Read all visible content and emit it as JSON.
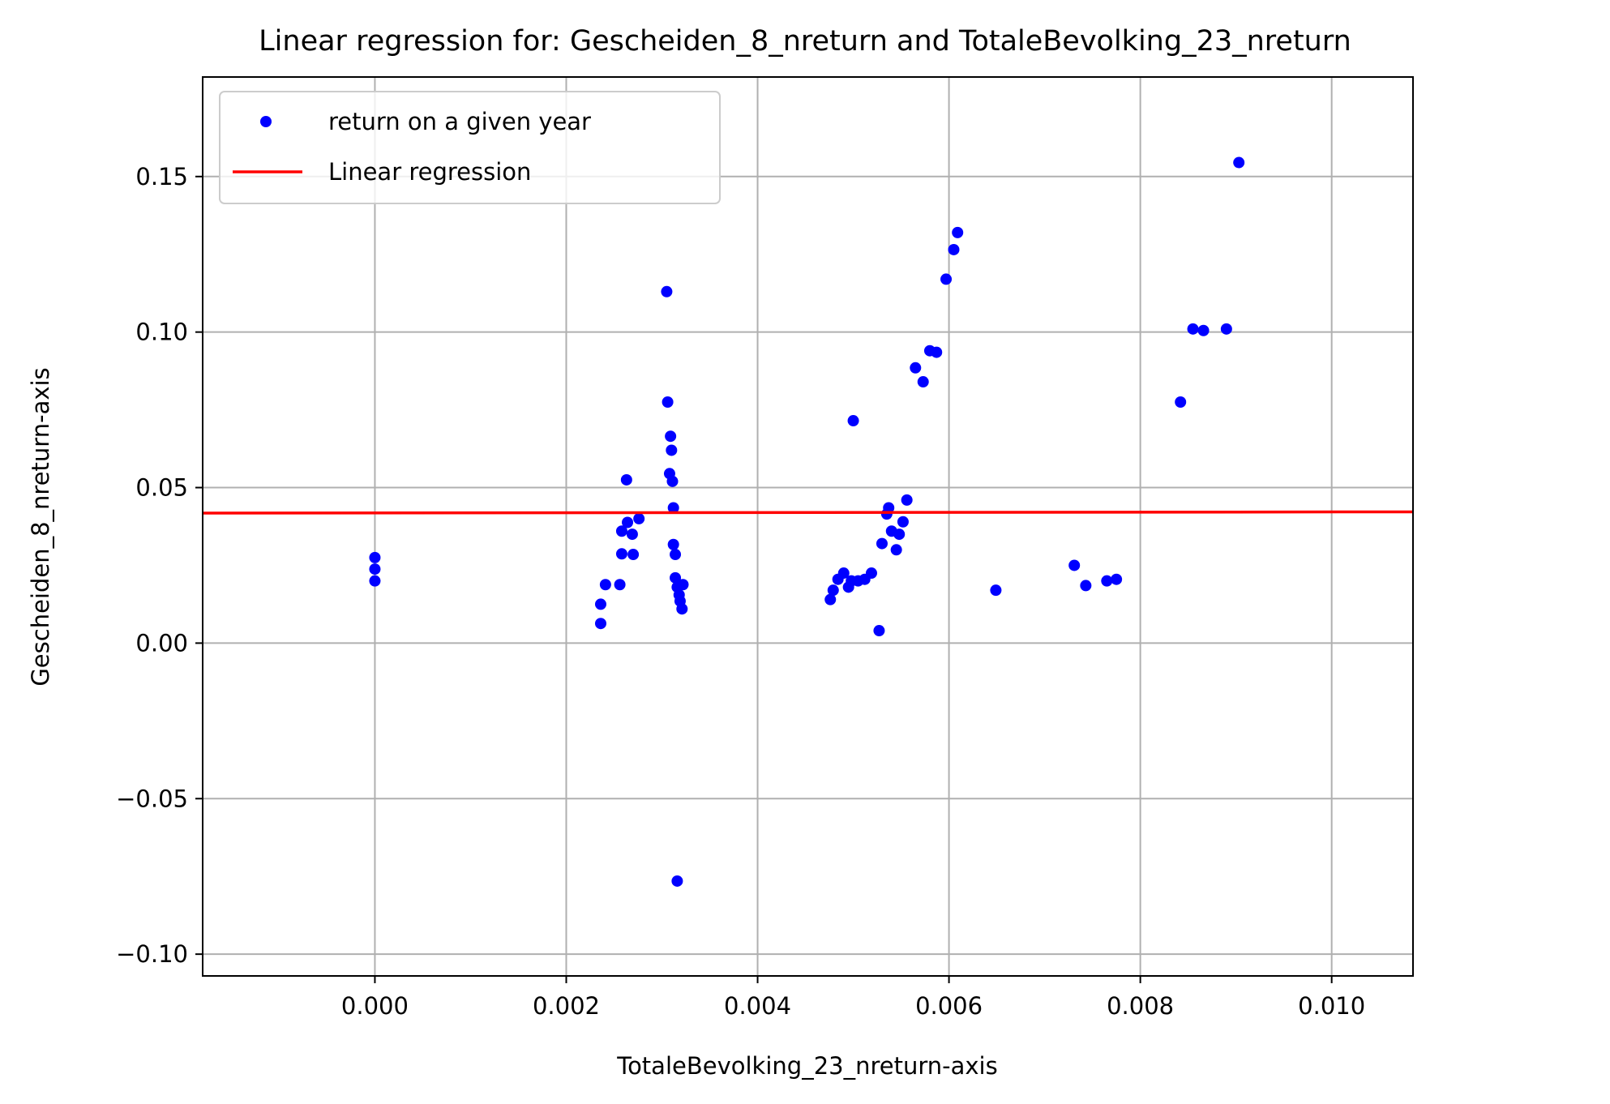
{
  "chart_data": {
    "type": "scatter",
    "title": "Linear regression for: Gescheiden_8_nreturn and TotaleBevolking_23_nreturn",
    "xlabel": "TotaleBevolking_23_nreturn-axis",
    "ylabel": "Gescheiden_8_nreturn-axis",
    "xlim": [
      -0.0018,
      0.01085
    ],
    "ylim": [
      -0.107,
      0.182
    ],
    "grid": true,
    "legend_position": "top-left",
    "x_ticks": [
      0.0,
      0.002,
      0.004,
      0.006,
      0.008,
      0.01
    ],
    "x_tick_labels": [
      "0.000",
      "0.002",
      "0.004",
      "0.006",
      "0.008",
      "0.010"
    ],
    "y_ticks": [
      -0.1,
      -0.05,
      0.0,
      0.05,
      0.1,
      0.15
    ],
    "y_tick_labels": [
      "−0.10",
      "−0.05",
      "0.00",
      "0.05",
      "0.10",
      "0.15"
    ],
    "series": [
      {
        "name": "return on a given year",
        "kind": "scatter",
        "color": "#0000ff",
        "points": [
          [
            0.0,
            0.0275
          ],
          [
            0.0,
            0.0238
          ],
          [
            0.0,
            0.02
          ],
          [
            0.00236,
            0.0125
          ],
          [
            0.00236,
            0.0063
          ],
          [
            0.00241,
            0.0188
          ],
          [
            0.00256,
            0.0188
          ],
          [
            0.00258,
            0.036
          ],
          [
            0.00258,
            0.0287
          ],
          [
            0.00263,
            0.0525
          ],
          [
            0.00264,
            0.0388
          ],
          [
            0.00269,
            0.035
          ],
          [
            0.0027,
            0.0285
          ],
          [
            0.00276,
            0.04
          ],
          [
            0.00305,
            0.113
          ],
          [
            0.00306,
            0.0775
          ],
          [
            0.00309,
            0.0665
          ],
          [
            0.00308,
            0.0545
          ],
          [
            0.0031,
            0.062
          ],
          [
            0.00311,
            0.052
          ],
          [
            0.00312,
            0.0435
          ],
          [
            0.00312,
            0.0317
          ],
          [
            0.00314,
            0.0285
          ],
          [
            0.00314,
            0.021
          ],
          [
            0.00316,
            0.018
          ],
          [
            0.00318,
            0.0155
          ],
          [
            0.00319,
            0.0135
          ],
          [
            0.00321,
            0.011
          ],
          [
            0.00322,
            0.0188
          ],
          [
            0.00316,
            -0.0765
          ],
          [
            0.00476,
            0.014
          ],
          [
            0.00479,
            0.017
          ],
          [
            0.00484,
            0.0205
          ],
          [
            0.0049,
            0.0225
          ],
          [
            0.00495,
            0.018
          ],
          [
            0.00498,
            0.02
          ],
          [
            0.00505,
            0.02
          ],
          [
            0.00512,
            0.0205
          ],
          [
            0.00519,
            0.0225
          ],
          [
            0.005,
            0.0715
          ],
          [
            0.00527,
            0.004
          ],
          [
            0.0053,
            0.032
          ],
          [
            0.00535,
            0.0415
          ],
          [
            0.00537,
            0.0435
          ],
          [
            0.0054,
            0.036
          ],
          [
            0.00545,
            0.03
          ],
          [
            0.00548,
            0.035
          ],
          [
            0.00552,
            0.039
          ],
          [
            0.00556,
            0.046
          ],
          [
            0.00565,
            0.0885
          ],
          [
            0.00573,
            0.084
          ],
          [
            0.0058,
            0.094
          ],
          [
            0.00587,
            0.0935
          ],
          [
            0.00597,
            0.117
          ],
          [
            0.00605,
            0.1265
          ],
          [
            0.00609,
            0.132
          ],
          [
            0.00649,
            0.017
          ],
          [
            0.00731,
            0.025
          ],
          [
            0.00743,
            0.0185
          ],
          [
            0.00765,
            0.02
          ],
          [
            0.00775,
            0.0205
          ],
          [
            0.00842,
            0.0775
          ],
          [
            0.00855,
            0.101
          ],
          [
            0.00866,
            0.1005
          ],
          [
            0.0089,
            0.101
          ],
          [
            0.00903,
            0.1545
          ]
        ]
      },
      {
        "name": "Linear regression",
        "kind": "line",
        "color": "#ff0000",
        "points": [
          [
            -0.0018,
            0.0418
          ],
          [
            0.01085,
            0.0422
          ]
        ]
      }
    ]
  }
}
